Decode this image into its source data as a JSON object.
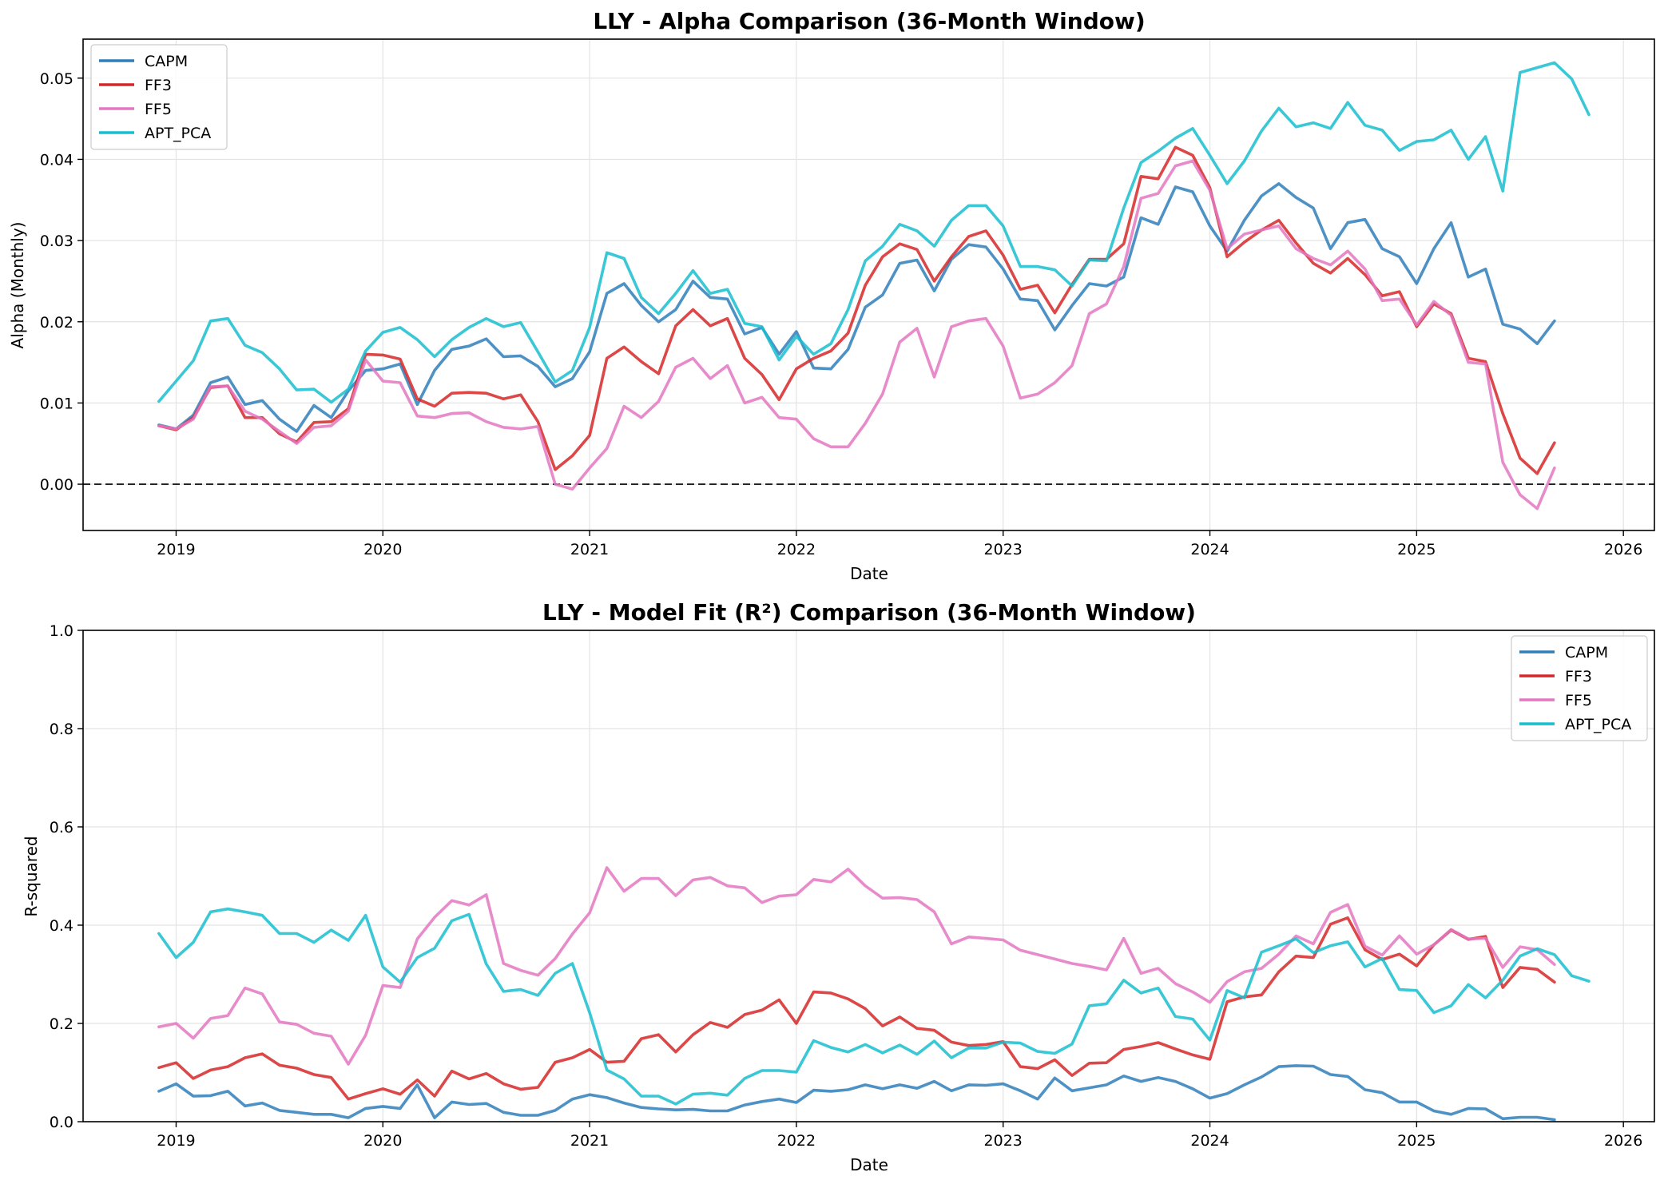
{
  "chart_data": [
    {
      "type": "line",
      "title": "LLY - Alpha Comparison (36-Month Window)",
      "xlabel": "Date",
      "ylabel": "Alpha (Monthly)",
      "xlim": [
        2018.55,
        2026.15
      ],
      "ylim": [
        -0.0057,
        0.0548
      ],
      "x_ticks": [
        2019,
        2020,
        2021,
        2022,
        2023,
        2024,
        2025,
        2026
      ],
      "x_tick_labels": [
        "2019",
        "2020",
        "2021",
        "2022",
        "2023",
        "2024",
        "2025",
        "2026"
      ],
      "y_ticks": [
        0.0,
        0.01,
        0.02,
        0.03,
        0.04,
        0.05
      ],
      "y_tick_labels": [
        "0.00",
        "0.01",
        "0.02",
        "0.03",
        "0.04",
        "0.05"
      ],
      "x_start": "2018-12",
      "reference_line": {
        "y": 0.0,
        "style": "dashed",
        "color": "#000000"
      },
      "grid": true,
      "legend": "upper-left",
      "series": [
        {
          "name": "CAPM",
          "color": "#2f7fbb",
          "values": [
            0.0073,
            0.0068,
            0.0085,
            0.0125,
            0.0132,
            0.0098,
            0.0103,
            0.008,
            0.0065,
            0.0097,
            0.0082,
            0.0115,
            0.014,
            0.0142,
            0.0148,
            0.0098,
            0.014,
            0.0166,
            0.017,
            0.0179,
            0.0157,
            0.0158,
            0.0145,
            0.012,
            0.013,
            0.0163,
            0.0235,
            0.0247,
            0.022,
            0.02,
            0.0215,
            0.025,
            0.023,
            0.0228,
            0.0185,
            0.0193,
            0.016,
            0.0188,
            0.0143,
            0.0142,
            0.0166,
            0.0218,
            0.0233,
            0.0272,
            0.0276,
            0.0238,
            0.0277,
            0.0295,
            0.0292,
            0.0265,
            0.0228,
            0.0226,
            0.019,
            0.022,
            0.0247,
            0.0244,
            0.0255,
            0.0328,
            0.032,
            0.0366,
            0.036,
            0.0318,
            0.0287,
            0.0325,
            0.0355,
            0.037,
            0.0353,
            0.034,
            0.029,
            0.0322,
            0.0326,
            0.029,
            0.028,
            0.0247,
            0.029,
            0.0322,
            0.0255,
            0.0265,
            0.0197,
            0.0191,
            0.0173,
            0.0201
          ]
        },
        {
          "name": "FF3",
          "color": "#d62728",
          "values": [
            0.0072,
            0.0067,
            0.0082,
            0.0119,
            0.0121,
            0.0082,
            0.0082,
            0.0062,
            0.0052,
            0.0076,
            0.0077,
            0.0093,
            0.016,
            0.0159,
            0.0154,
            0.0105,
            0.0096,
            0.0112,
            0.0113,
            0.0112,
            0.0105,
            0.011,
            0.0077,
            0.0018,
            0.0035,
            0.006,
            0.0155,
            0.0169,
            0.0151,
            0.0136,
            0.0195,
            0.0215,
            0.0195,
            0.0204,
            0.0155,
            0.0135,
            0.0104,
            0.0142,
            0.0155,
            0.0164,
            0.0186,
            0.0245,
            0.028,
            0.0296,
            0.0289,
            0.025,
            0.028,
            0.0305,
            0.0312,
            0.0282,
            0.024,
            0.0245,
            0.0211,
            0.0246,
            0.0277,
            0.0277,
            0.0296,
            0.0379,
            0.0376,
            0.0415,
            0.0405,
            0.0365,
            0.028,
            0.0298,
            0.0313,
            0.0325,
            0.0297,
            0.0272,
            0.026,
            0.0278,
            0.0258,
            0.0232,
            0.0237,
            0.0194,
            0.0222,
            0.021,
            0.0155,
            0.0151,
            0.0087,
            0.0032,
            0.0013,
            0.0051
          ]
        },
        {
          "name": "FF5",
          "color": "#e377c2",
          "values": [
            0.0072,
            0.0068,
            0.008,
            0.012,
            0.0121,
            0.009,
            0.008,
            0.0065,
            0.005,
            0.007,
            0.0072,
            0.009,
            0.0153,
            0.0127,
            0.0125,
            0.0084,
            0.0082,
            0.0087,
            0.0088,
            0.0077,
            0.007,
            0.0068,
            0.0071,
            0.0,
            -0.0006,
            0.002,
            0.0044,
            0.0096,
            0.0082,
            0.0102,
            0.0144,
            0.0155,
            0.013,
            0.0146,
            0.01,
            0.0107,
            0.0082,
            0.008,
            0.0056,
            0.0046,
            0.0046,
            0.0075,
            0.0111,
            0.0175,
            0.0192,
            0.0132,
            0.0194,
            0.0201,
            0.0204,
            0.017,
            0.0106,
            0.0111,
            0.0125,
            0.0146,
            0.021,
            0.0222,
            0.0268,
            0.0352,
            0.0358,
            0.0392,
            0.0398,
            0.0362,
            0.029,
            0.0308,
            0.0313,
            0.0318,
            0.029,
            0.0278,
            0.027,
            0.0287,
            0.0265,
            0.0226,
            0.0228,
            0.0196,
            0.0225,
            0.0208,
            0.015,
            0.0148,
            0.0027,
            -0.0013,
            -0.003,
            0.002
          ]
        },
        {
          "name": "APT_PCA",
          "color": "#17becf",
          "values": [
            0.0102,
            0.0127,
            0.0152,
            0.0201,
            0.0204,
            0.0171,
            0.0162,
            0.0142,
            0.0116,
            0.0117,
            0.0101,
            0.0117,
            0.0164,
            0.0187,
            0.0193,
            0.0178,
            0.0157,
            0.0178,
            0.0193,
            0.0204,
            0.0194,
            0.0199,
            0.0163,
            0.0126,
            0.014,
            0.0193,
            0.0285,
            0.0278,
            0.023,
            0.021,
            0.0235,
            0.0263,
            0.0235,
            0.024,
            0.0198,
            0.0194,
            0.0153,
            0.0182,
            0.016,
            0.0173,
            0.0215,
            0.0275,
            0.0293,
            0.032,
            0.0312,
            0.0293,
            0.0325,
            0.0343,
            0.0343,
            0.0318,
            0.0268,
            0.0268,
            0.0264,
            0.0244,
            0.0276,
            0.0275,
            0.034,
            0.0396,
            0.041,
            0.0426,
            0.0438,
            0.0405,
            0.037,
            0.0398,
            0.0435,
            0.0463,
            0.044,
            0.0445,
            0.0438,
            0.047,
            0.0442,
            0.0436,
            0.0411,
            0.0422,
            0.0424,
            0.0436,
            0.04,
            0.0428,
            0.0361,
            0.0507,
            0.0513,
            0.0519,
            0.0499,
            0.0455
          ]
        }
      ]
    },
    {
      "type": "line",
      "title": "LLY - Model Fit (R²) Comparison (36-Month Window)",
      "xlabel": "Date",
      "ylabel": "R-squared",
      "xlim": [
        2018.55,
        2026.15
      ],
      "ylim": [
        0.0,
        1.0
      ],
      "x_ticks": [
        2019,
        2020,
        2021,
        2022,
        2023,
        2024,
        2025,
        2026
      ],
      "x_tick_labels": [
        "2019",
        "2020",
        "2021",
        "2022",
        "2023",
        "2024",
        "2025",
        "2026"
      ],
      "y_ticks": [
        0.0,
        0.2,
        0.4,
        0.6,
        0.8,
        1.0
      ],
      "y_tick_labels": [
        "0.0",
        "0.2",
        "0.4",
        "0.6",
        "0.8",
        "1.0"
      ],
      "x_start": "2018-12",
      "grid": true,
      "legend": "upper-right",
      "series": [
        {
          "name": "CAPM",
          "color": "#2f7fbb",
          "values": [
            0.062,
            0.077,
            0.052,
            0.053,
            0.062,
            0.032,
            0.038,
            0.023,
            0.019,
            0.015,
            0.015,
            0.008,
            0.027,
            0.031,
            0.027,
            0.075,
            0.008,
            0.04,
            0.035,
            0.037,
            0.019,
            0.013,
            0.013,
            0.023,
            0.046,
            0.055,
            0.049,
            0.038,
            0.029,
            0.026,
            0.024,
            0.025,
            0.022,
            0.022,
            0.034,
            0.041,
            0.046,
            0.039,
            0.064,
            0.062,
            0.065,
            0.075,
            0.067,
            0.075,
            0.068,
            0.082,
            0.063,
            0.075,
            0.074,
            0.077,
            0.063,
            0.046,
            0.089,
            0.063,
            0.069,
            0.075,
            0.093,
            0.082,
            0.09,
            0.082,
            0.067,
            0.048,
            0.057,
            0.075,
            0.091,
            0.112,
            0.114,
            0.113,
            0.096,
            0.092,
            0.065,
            0.059,
            0.04,
            0.04,
            0.022,
            0.015,
            0.027,
            0.026,
            0.006,
            0.009,
            0.009,
            0.004
          ]
        },
        {
          "name": "FF3",
          "color": "#d62728",
          "values": [
            0.11,
            0.12,
            0.088,
            0.105,
            0.112,
            0.13,
            0.138,
            0.115,
            0.109,
            0.096,
            0.09,
            0.046,
            0.057,
            0.067,
            0.056,
            0.085,
            0.052,
            0.103,
            0.087,
            0.098,
            0.077,
            0.066,
            0.07,
            0.121,
            0.13,
            0.147,
            0.121,
            0.123,
            0.169,
            0.177,
            0.142,
            0.177,
            0.202,
            0.192,
            0.218,
            0.227,
            0.248,
            0.2,
            0.264,
            0.262,
            0.25,
            0.23,
            0.195,
            0.213,
            0.19,
            0.186,
            0.162,
            0.155,
            0.157,
            0.163,
            0.112,
            0.108,
            0.126,
            0.094,
            0.119,
            0.12,
            0.147,
            0.153,
            0.161,
            0.148,
            0.136,
            0.127,
            0.244,
            0.254,
            0.258,
            0.305,
            0.337,
            0.334,
            0.402,
            0.415,
            0.35,
            0.33,
            0.341,
            0.317,
            0.36,
            0.39,
            0.371,
            0.377,
            0.273,
            0.314,
            0.31,
            0.284
          ]
        },
        {
          "name": "FF5",
          "color": "#e377c2",
          "values": [
            0.193,
            0.2,
            0.17,
            0.21,
            0.216,
            0.272,
            0.26,
            0.203,
            0.198,
            0.18,
            0.174,
            0.117,
            0.176,
            0.277,
            0.273,
            0.372,
            0.416,
            0.45,
            0.441,
            0.462,
            0.322,
            0.308,
            0.298,
            0.332,
            0.382,
            0.425,
            0.517,
            0.469,
            0.495,
            0.495,
            0.46,
            0.492,
            0.497,
            0.48,
            0.476,
            0.446,
            0.459,
            0.462,
            0.493,
            0.488,
            0.514,
            0.48,
            0.455,
            0.456,
            0.452,
            0.427,
            0.362,
            0.376,
            0.373,
            0.37,
            0.349,
            0.34,
            0.331,
            0.322,
            0.316,
            0.309,
            0.373,
            0.302,
            0.312,
            0.281,
            0.264,
            0.243,
            0.285,
            0.305,
            0.312,
            0.341,
            0.378,
            0.362,
            0.426,
            0.442,
            0.357,
            0.339,
            0.378,
            0.341,
            0.36,
            0.391,
            0.372,
            0.373,
            0.314,
            0.356,
            0.35,
            0.32
          ]
        },
        {
          "name": "APT_PCA",
          "color": "#17becf",
          "values": [
            0.383,
            0.334,
            0.365,
            0.427,
            0.433,
            0.427,
            0.42,
            0.383,
            0.383,
            0.365,
            0.39,
            0.369,
            0.42,
            0.315,
            0.284,
            0.334,
            0.353,
            0.409,
            0.422,
            0.321,
            0.265,
            0.269,
            0.257,
            0.302,
            0.322,
            0.222,
            0.105,
            0.087,
            0.052,
            0.052,
            0.036,
            0.056,
            0.058,
            0.054,
            0.088,
            0.104,
            0.104,
            0.101,
            0.165,
            0.151,
            0.142,
            0.157,
            0.14,
            0.156,
            0.137,
            0.164,
            0.13,
            0.15,
            0.15,
            0.162,
            0.16,
            0.143,
            0.139,
            0.158,
            0.236,
            0.24,
            0.288,
            0.262,
            0.272,
            0.214,
            0.209,
            0.166,
            0.267,
            0.252,
            0.345,
            0.358,
            0.372,
            0.344,
            0.358,
            0.366,
            0.315,
            0.332,
            0.269,
            0.267,
            0.222,
            0.236,
            0.279,
            0.252,
            0.288,
            0.337,
            0.352,
            0.34,
            0.297,
            0.286
          ]
        }
      ]
    }
  ]
}
